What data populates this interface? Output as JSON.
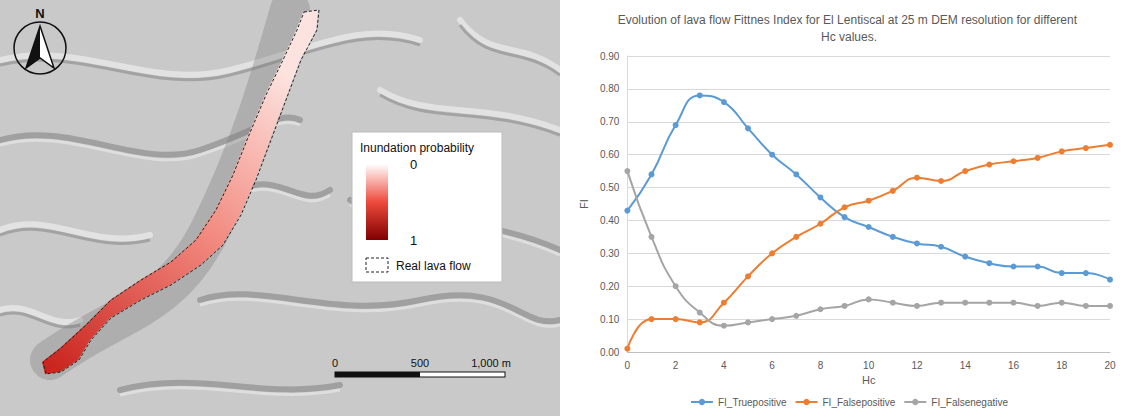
{
  "map": {
    "north": "N",
    "legend_title": "Inundation probability",
    "legend_ticks": [
      0,
      1
    ],
    "outline_label": "Real lava flow",
    "scale_bar": {
      "ticks": [
        0,
        500,
        {
          "value": 1000,
          "label": "1,000 m"
        }
      ]
    }
  },
  "chart_data": {
    "type": "line",
    "title": "Evolution of lava flow Fittnes Index for El Lentiscal at 25 m DEM resolution for different Hc values.",
    "x_label": "Hc",
    "y_label": "FI",
    "x": [
      0,
      1,
      2,
      3,
      4,
      5,
      6,
      7,
      8,
      9,
      10,
      11,
      12,
      13,
      14,
      15,
      16,
      17,
      18,
      19,
      20
    ],
    "series": [
      {
        "name": "FI_Truepositive",
        "color": "#5b9bd5",
        "values": [
          0.43,
          0.54,
          0.69,
          0.78,
          0.76,
          0.68,
          0.6,
          0.54,
          0.47,
          0.41,
          0.38,
          0.35,
          0.33,
          0.32,
          0.29,
          0.27,
          0.26,
          0.26,
          0.24,
          0.24,
          0.22
        ]
      },
      {
        "name": "FI_Falsepositive",
        "color": "#ed7d31",
        "values": [
          0.01,
          0.1,
          0.1,
          0.09,
          0.15,
          0.23,
          0.3,
          0.35,
          0.39,
          0.44,
          0.46,
          0.49,
          0.53,
          0.52,
          0.55,
          0.57,
          0.58,
          0.59,
          0.61,
          0.62,
          0.63
        ]
      },
      {
        "name": "FI_Falsenegative",
        "color": "#a5a5a5",
        "values": [
          0.55,
          0.35,
          0.2,
          0.12,
          0.08,
          0.09,
          0.1,
          0.11,
          0.13,
          0.14,
          0.16,
          0.15,
          0.14,
          0.15,
          0.15,
          0.15,
          0.15,
          0.14,
          0.15,
          0.14,
          0.14
        ]
      }
    ],
    "xlim": [
      0,
      20
    ],
    "xticks": [
      0,
      2,
      4,
      6,
      8,
      10,
      12,
      14,
      16,
      18,
      20
    ],
    "ylim": [
      0,
      0.9
    ],
    "yticks": [
      {
        "value": 0,
        "label": "0.00"
      },
      {
        "value": 0.1,
        "label": "0.10"
      },
      {
        "value": 0.2,
        "label": "0.20"
      },
      {
        "value": 0.3,
        "label": "0.30"
      },
      {
        "value": 0.4,
        "label": "0.40"
      },
      {
        "value": 0.5,
        "label": "0.50"
      },
      {
        "value": 0.6,
        "label": "0.60"
      },
      {
        "value": 0.7,
        "label": "0.70"
      },
      {
        "value": 0.8,
        "label": "0.80"
      },
      {
        "value": 0.9,
        "label": "0.90"
      }
    ],
    "grid": true,
    "legend": "bottom",
    "marker": "circle"
  }
}
